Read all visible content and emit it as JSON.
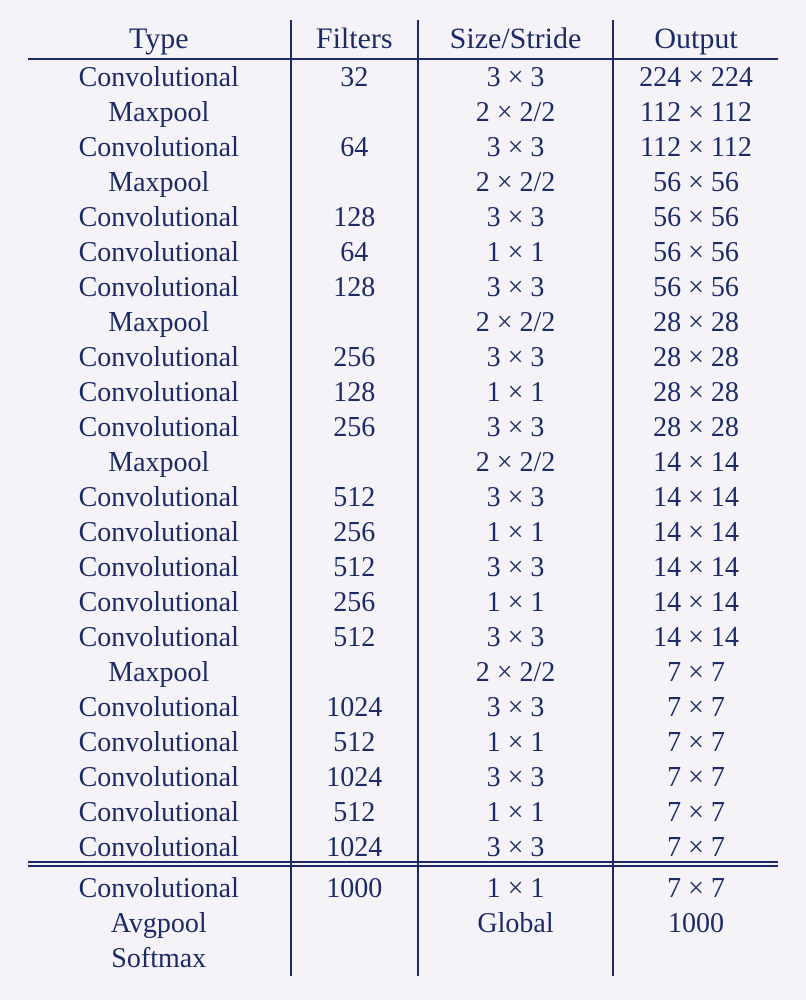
{
  "table": {
    "type": "table",
    "text_color": "#1c2b66",
    "background_color": "#f5f3f7",
    "rule_color": "#1c2b66",
    "font_family": "Times New Roman",
    "header_fontsize_pt": 22,
    "body_fontsize_pt": 20,
    "columns": [
      {
        "key": "type",
        "label": "Type",
        "align": "center",
        "width_pct": 35
      },
      {
        "key": "filters",
        "label": "Filters",
        "align": "center",
        "width_pct": 17
      },
      {
        "key": "size",
        "label": "Size/Stride",
        "align": "center",
        "width_pct": 26
      },
      {
        "key": "output",
        "label": "Output",
        "align": "center",
        "width_pct": 22
      }
    ],
    "sections": [
      {
        "rows": [
          {
            "type": "Convolutional",
            "filters": "32",
            "size": "3 × 3",
            "output": "224 × 224"
          },
          {
            "type": "Maxpool",
            "filters": "",
            "size": "2 × 2/2",
            "output": "112 × 112"
          },
          {
            "type": "Convolutional",
            "filters": "64",
            "size": "3 × 3",
            "output": "112 × 112"
          },
          {
            "type": "Maxpool",
            "filters": "",
            "size": "2 × 2/2",
            "output": "56 × 56"
          },
          {
            "type": "Convolutional",
            "filters": "128",
            "size": "3 × 3",
            "output": "56 × 56"
          },
          {
            "type": "Convolutional",
            "filters": "64",
            "size": "1 × 1",
            "output": "56 × 56"
          },
          {
            "type": "Convolutional",
            "filters": "128",
            "size": "3 × 3",
            "output": "56 × 56"
          },
          {
            "type": "Maxpool",
            "filters": "",
            "size": "2 × 2/2",
            "output": "28 × 28"
          },
          {
            "type": "Convolutional",
            "filters": "256",
            "size": "3 × 3",
            "output": "28 × 28"
          },
          {
            "type": "Convolutional",
            "filters": "128",
            "size": "1 × 1",
            "output": "28 × 28"
          },
          {
            "type": "Convolutional",
            "filters": "256",
            "size": "3 × 3",
            "output": "28 × 28"
          },
          {
            "type": "Maxpool",
            "filters": "",
            "size": "2 × 2/2",
            "output": "14 × 14"
          },
          {
            "type": "Convolutional",
            "filters": "512",
            "size": "3 × 3",
            "output": "14 × 14"
          },
          {
            "type": "Convolutional",
            "filters": "256",
            "size": "1 × 1",
            "output": "14 × 14"
          },
          {
            "type": "Convolutional",
            "filters": "512",
            "size": "3 × 3",
            "output": "14 × 14"
          },
          {
            "type": "Convolutional",
            "filters": "256",
            "size": "1 × 1",
            "output": "14 × 14"
          },
          {
            "type": "Convolutional",
            "filters": "512",
            "size": "3 × 3",
            "output": "14 × 14"
          },
          {
            "type": "Maxpool",
            "filters": "",
            "size": "2 × 2/2",
            "output": "7 × 7"
          },
          {
            "type": "Convolutional",
            "filters": "1024",
            "size": "3 × 3",
            "output": "7 × 7"
          },
          {
            "type": "Convolutional",
            "filters": "512",
            "size": "1 × 1",
            "output": "7 × 7"
          },
          {
            "type": "Convolutional",
            "filters": "1024",
            "size": "3 × 3",
            "output": "7 × 7"
          },
          {
            "type": "Convolutional",
            "filters": "512",
            "size": "1 × 1",
            "output": "7 × 7"
          },
          {
            "type": "Convolutional",
            "filters": "1024",
            "size": "3 × 3",
            "output": "7 × 7"
          }
        ]
      },
      {
        "double_rule_above": true,
        "rows": [
          {
            "type": "Convolutional",
            "filters": "1000",
            "size": "1 × 1",
            "output": "7 × 7"
          },
          {
            "type": "Avgpool",
            "filters": "",
            "size": "Global",
            "output": "1000"
          },
          {
            "type": "Softmax",
            "filters": "",
            "size": "",
            "output": ""
          }
        ]
      }
    ]
  }
}
